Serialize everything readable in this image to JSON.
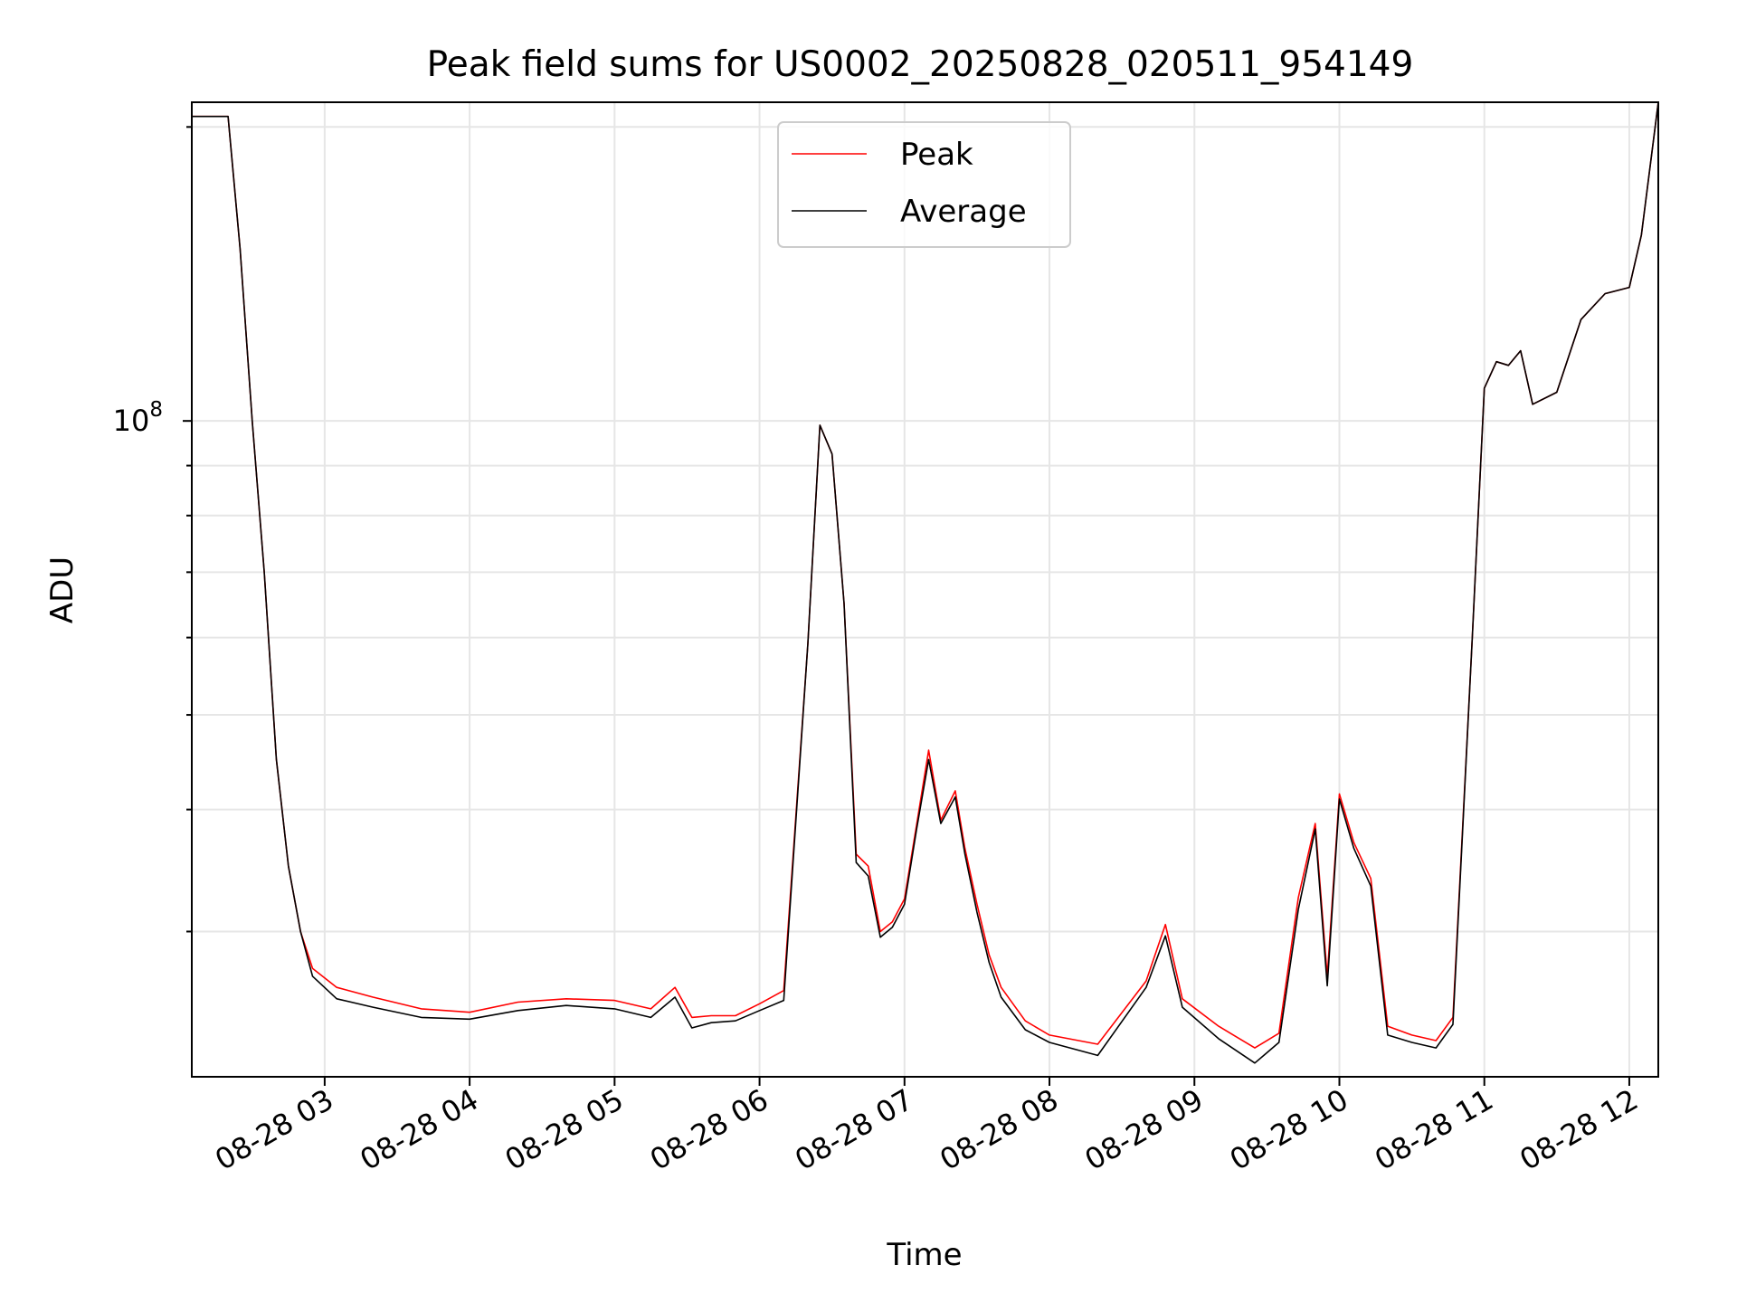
{
  "chart_data": {
    "type": "line",
    "title": "Peak field sums for US0002_20250828_020511_954149",
    "xlabel": "Time",
    "ylabel": "ADU",
    "yscale": "log",
    "grid": true,
    "legend_position": "upper-center",
    "x_tick_labels": [
      "08-28 03",
      "08-28 04",
      "08-28 05",
      "08-28 06",
      "08-28 07",
      "08-28 08",
      "08-28 09",
      "08-28 10",
      "08-28 11",
      "08-28 12"
    ],
    "y_tick_label": {
      "base": "10",
      "exponent": "8"
    },
    "xlim": [
      "2025-08-28 02:05",
      "2025-08-28 12:12"
    ],
    "ylim": [
      21300000,
      212000000
    ],
    "series": [
      {
        "name": "Peak",
        "color": "#ff0000",
        "x": [
          "2025-08-28 02:05",
          "2025-08-28 02:13",
          "2025-08-28 02:20",
          "2025-08-28 02:25",
          "2025-08-28 02:30",
          "2025-08-28 02:35",
          "2025-08-28 02:40",
          "2025-08-28 02:45",
          "2025-08-28 02:50",
          "2025-08-28 02:55",
          "2025-08-28 03:05",
          "2025-08-28 03:20",
          "2025-08-28 03:40",
          "2025-08-28 04:00",
          "2025-08-28 04:20",
          "2025-08-28 04:40",
          "2025-08-28 05:00",
          "2025-08-28 05:15",
          "2025-08-28 05:25",
          "2025-08-28 05:32",
          "2025-08-28 05:40",
          "2025-08-28 05:50",
          "2025-08-28 06:00",
          "2025-08-28 06:10",
          "2025-08-28 06:20",
          "2025-08-28 06:25",
          "2025-08-28 06:30",
          "2025-08-28 06:35",
          "2025-08-28 06:40",
          "2025-08-28 06:45",
          "2025-08-28 06:50",
          "2025-08-28 06:55",
          "2025-08-28 07:00",
          "2025-08-28 07:05",
          "2025-08-28 07:10",
          "2025-08-28 07:15",
          "2025-08-28 07:21",
          "2025-08-28 07:25",
          "2025-08-28 07:30",
          "2025-08-28 07:35",
          "2025-08-28 07:40",
          "2025-08-28 07:50",
          "2025-08-28 08:00",
          "2025-08-28 08:20",
          "2025-08-28 08:40",
          "2025-08-28 08:48",
          "2025-08-28 08:55",
          "2025-08-28 09:10",
          "2025-08-28 09:25",
          "2025-08-28 09:35",
          "2025-08-28 09:43",
          "2025-08-28 09:50",
          "2025-08-28 09:55",
          "2025-08-28 10:00",
          "2025-08-28 10:06",
          "2025-08-28 10:13",
          "2025-08-28 10:20",
          "2025-08-28 10:30",
          "2025-08-28 10:40",
          "2025-08-28 10:47",
          "2025-08-28 10:55",
          "2025-08-28 11:00",
          "2025-08-28 11:05",
          "2025-08-28 11:10",
          "2025-08-28 11:15",
          "2025-08-28 11:20",
          "2025-08-28 11:30",
          "2025-08-28 11:40",
          "2025-08-28 11:50",
          "2025-08-28 12:00",
          "2025-08-28 12:05",
          "2025-08-28 12:12"
        ],
        "values": [
          205000000,
          205000000,
          205000000,
          150000000,
          100000000,
          70000000,
          45000000,
          35000000,
          30000000,
          27500000,
          26300000,
          25700000,
          25000000,
          24800000,
          25400000,
          25600000,
          25500000,
          25000000,
          26300000,
          24500000,
          24600000,
          24600000,
          25300000,
          26100000,
          59200000,
          99000000,
          92500000,
          65000000,
          36000000,
          35000000,
          30000000,
          30700000,
          32400000,
          38600000,
          46000000,
          39000000,
          41800000,
          36500000,
          32000000,
          28400000,
          26300000,
          24300000,
          23500000,
          23000000,
          26700000,
          30500000,
          25600000,
          24000000,
          22800000,
          23600000,
          32500000,
          38700000,
          27000000,
          41500000,
          37000000,
          34000000,
          24000000,
          23500000,
          23200000,
          24500000,
          60000000,
          108000000,
          115000000,
          114000000,
          118000000,
          104000000,
          107000000,
          127000000,
          135000000,
          137000000,
          155000000,
          212000000
        ]
      },
      {
        "name": "Average",
        "color": "#000000",
        "x": [
          "2025-08-28 02:05",
          "2025-08-28 02:13",
          "2025-08-28 02:20",
          "2025-08-28 02:25",
          "2025-08-28 02:30",
          "2025-08-28 02:35",
          "2025-08-28 02:40",
          "2025-08-28 02:45",
          "2025-08-28 02:50",
          "2025-08-28 02:55",
          "2025-08-28 03:05",
          "2025-08-28 03:20",
          "2025-08-28 03:40",
          "2025-08-28 04:00",
          "2025-08-28 04:20",
          "2025-08-28 04:40",
          "2025-08-28 05:00",
          "2025-08-28 05:15",
          "2025-08-28 05:25",
          "2025-08-28 05:32",
          "2025-08-28 05:40",
          "2025-08-28 05:50",
          "2025-08-28 06:00",
          "2025-08-28 06:10",
          "2025-08-28 06:20",
          "2025-08-28 06:25",
          "2025-08-28 06:30",
          "2025-08-28 06:35",
          "2025-08-28 06:40",
          "2025-08-28 06:45",
          "2025-08-28 06:50",
          "2025-08-28 06:55",
          "2025-08-28 07:00",
          "2025-08-28 07:05",
          "2025-08-28 07:10",
          "2025-08-28 07:15",
          "2025-08-28 07:21",
          "2025-08-28 07:25",
          "2025-08-28 07:30",
          "2025-08-28 07:35",
          "2025-08-28 07:40",
          "2025-08-28 07:50",
          "2025-08-28 08:00",
          "2025-08-28 08:20",
          "2025-08-28 08:40",
          "2025-08-28 08:48",
          "2025-08-28 08:55",
          "2025-08-28 09:10",
          "2025-08-28 09:25",
          "2025-08-28 09:35",
          "2025-08-28 09:43",
          "2025-08-28 09:50",
          "2025-08-28 09:55",
          "2025-08-28 10:00",
          "2025-08-28 10:06",
          "2025-08-28 10:13",
          "2025-08-28 10:20",
          "2025-08-28 10:30",
          "2025-08-28 10:40",
          "2025-08-28 10:47",
          "2025-08-28 10:55",
          "2025-08-28 11:00",
          "2025-08-28 11:05",
          "2025-08-28 11:10",
          "2025-08-28 11:15",
          "2025-08-28 11:20",
          "2025-08-28 11:30",
          "2025-08-28 11:40",
          "2025-08-28 11:50",
          "2025-08-28 12:00",
          "2025-08-28 12:05",
          "2025-08-28 12:12"
        ],
        "values": [
          205000000,
          205000000,
          205000000,
          150000000,
          100000000,
          70000000,
          45000000,
          35000000,
          30000000,
          27000000,
          25600000,
          25100000,
          24500000,
          24400000,
          24900000,
          25200000,
          25000000,
          24500000,
          25700000,
          23900000,
          24200000,
          24300000,
          24900000,
          25500000,
          59200000,
          99000000,
          92500000,
          65000000,
          35300000,
          34200000,
          29600000,
          30300000,
          32000000,
          38200000,
          45000000,
          38700000,
          41200000,
          36000000,
          31400000,
          27900000,
          25700000,
          23800000,
          23100000,
          22400000,
          26300000,
          29700000,
          25100000,
          23300000,
          22000000,
          23100000,
          31600000,
          38200000,
          26400000,
          41000000,
          36500000,
          33400000,
          23500000,
          23100000,
          22800000,
          24100000,
          60000000,
          108000000,
          115000000,
          114000000,
          118000000,
          104000000,
          107000000,
          127000000,
          135000000,
          137000000,
          155000000,
          212000000
        ]
      }
    ]
  }
}
